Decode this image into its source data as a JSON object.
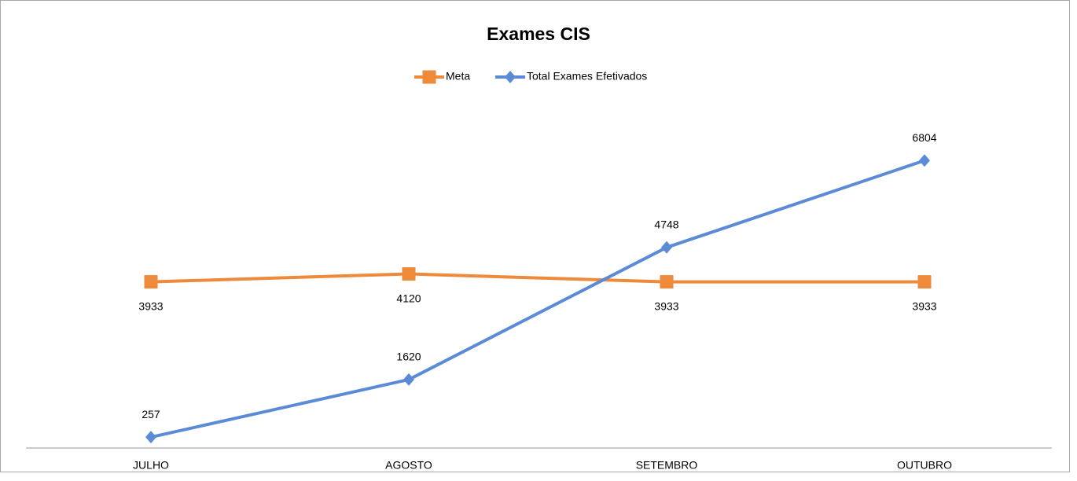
{
  "chart_data": {
    "type": "line",
    "title": "Exames CIS",
    "categories": [
      "JULHO",
      "AGOSTO",
      "SETEMBRO",
      "OUTUBRO"
    ],
    "series": [
      {
        "name": "Meta",
        "color": "#ee8a3a",
        "marker": "square",
        "label_position": "below",
        "values": [
          3933,
          4120,
          3933,
          3933
        ]
      },
      {
        "name": "Total Exames Efetivados",
        "color": "#5b8bd6",
        "marker": "diamond",
        "label_position": "above",
        "values": [
          257,
          1620,
          4748,
          6804
        ]
      }
    ],
    "ylim": [
      0,
      8000
    ],
    "grid": false,
    "legend": "top"
  }
}
